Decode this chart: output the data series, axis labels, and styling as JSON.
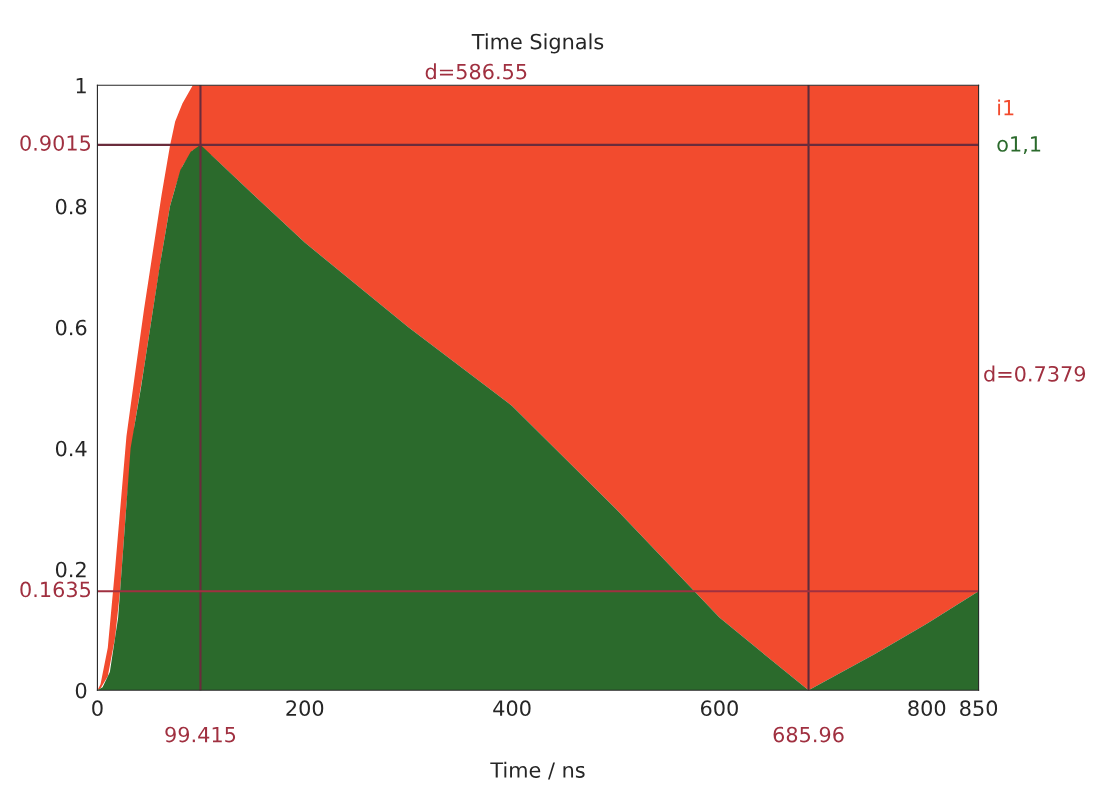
{
  "chart_data": {
    "type": "area",
    "title": "Time Signals",
    "xlabel": "Time / ns",
    "xlim": [
      0,
      850
    ],
    "xticks": [
      0,
      200,
      400,
      600,
      800,
      850
    ],
    "ylim": [
      0,
      1
    ],
    "yticks": [
      0,
      0.2,
      0.4,
      0.6,
      0.8,
      1
    ],
    "series": [
      {
        "name": "i1",
        "color": "#f24b2e",
        "x": [
          0,
          3,
          10,
          17,
          22,
          28,
          36,
          45,
          53,
          62,
          70,
          75,
          82,
          92,
          110,
          150,
          200,
          300,
          400,
          500,
          600,
          650,
          685.96,
          750,
          800,
          850
        ],
        "values": [
          0,
          0.01,
          0.07,
          0.2,
          0.3,
          0.42,
          0.52,
          0.63,
          0.72,
          0.82,
          0.9,
          0.94,
          0.97,
          1,
          1,
          1,
          1,
          1,
          1,
          1,
          1,
          1,
          1,
          1,
          1,
          1
        ]
      },
      {
        "name": "o1,1",
        "color": "#2b6a2c",
        "x": [
          0,
          5,
          12,
          20,
          32,
          42,
          51,
          60,
          70,
          80,
          90,
          99.415,
          150,
          200,
          300,
          400,
          500,
          600,
          650,
          685.96,
          750,
          800,
          850
        ],
        "values": [
          0,
          0.005,
          0.03,
          0.12,
          0.4,
          0.5,
          0.6,
          0.7,
          0.8,
          0.86,
          0.89,
          0.9015,
          0.82,
          0.74,
          0.6,
          0.47,
          0.3,
          0.12,
          0.05,
          0,
          0.06,
          0.11,
          0.1635
        ]
      }
    ],
    "ref_lines": [
      {
        "axis": "x",
        "value": 99.415,
        "label": "99.415",
        "color": "#6a2c3c"
      },
      {
        "axis": "x",
        "value": 685.96,
        "label": "685.96",
        "color": "#5a2c3c"
      },
      {
        "axis": "y",
        "value": 0.9015,
        "label": "0.9015",
        "color": "#6a2c3c"
      },
      {
        "axis": "y",
        "value": 0.1635,
        "label": "0.1635",
        "color": "#a03040"
      }
    ],
    "annotations": [
      "d=586.55",
      "d=0.7379"
    ],
    "grid": false
  }
}
